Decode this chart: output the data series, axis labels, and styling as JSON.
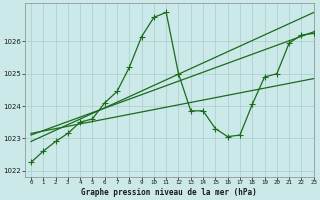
{
  "bg_color": "#cce9e9",
  "grid_color": "#aacccc",
  "line_color": "#1a6b1a",
  "title": "Graphe pression niveau de la mer (hPa)",
  "xlim": [
    -0.5,
    23
  ],
  "ylim": [
    1021.8,
    1027.2
  ],
  "yticks": [
    1022,
    1023,
    1024,
    1025,
    1026
  ],
  "xticks": [
    0,
    1,
    2,
    3,
    4,
    5,
    6,
    7,
    8,
    9,
    10,
    11,
    12,
    13,
    14,
    15,
    16,
    17,
    18,
    19,
    20,
    21,
    22,
    23
  ],
  "series_main_x": [
    0,
    1,
    2,
    3,
    4,
    5,
    6,
    7,
    8,
    9,
    10,
    11,
    12,
    13,
    14,
    15,
    16,
    17,
    18,
    19,
    20,
    21,
    22,
    23
  ],
  "series_main_y": [
    1022.25,
    1022.6,
    1022.9,
    1023.15,
    1023.5,
    1023.6,
    1024.1,
    1024.45,
    1025.2,
    1026.15,
    1026.75,
    1026.9,
    1025.0,
    1023.85,
    1023.85,
    1023.3,
    1023.05,
    1023.1,
    1024.05,
    1024.9,
    1025.0,
    1025.95,
    1026.2,
    1026.25
  ],
  "series_trend1_x": [
    0,
    23
  ],
  "series_trend1_y": [
    1022.9,
    1026.9
  ],
  "series_trend2_x": [
    0,
    23
  ],
  "series_trend2_y": [
    1023.1,
    1026.3
  ],
  "series_trend3_x": [
    0,
    23
  ],
  "series_trend3_y": [
    1023.15,
    1024.85
  ],
  "marker": "+",
  "markersize": 4,
  "linewidth": 0.9
}
